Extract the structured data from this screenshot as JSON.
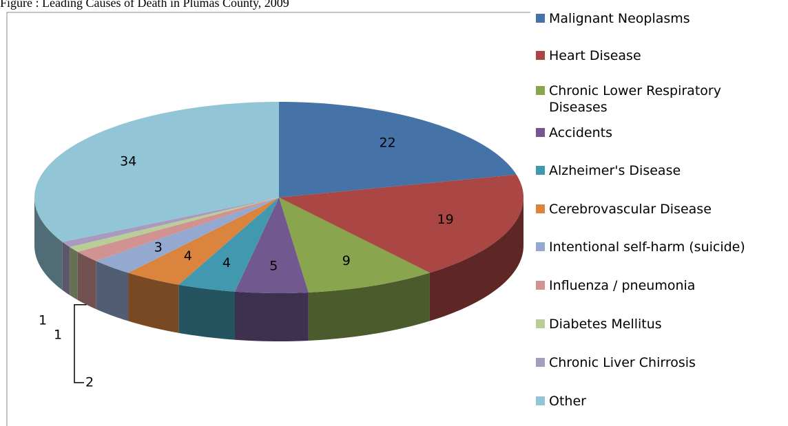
{
  "chart_data": {
    "type": "pie3d",
    "title": "Figure : Leading Causes of Death in Plumas County, 2009",
    "categories": [
      "Malignant Neoplasms",
      "Heart Disease",
      "Chronic Lower Respiratory Diseases",
      "Accidents",
      "Alzheimer's Disease",
      "Cerebrovascular Disease",
      "Intentional self-harm (suicide)",
      "Influenza / pneumonia",
      "Diabetes Mellitus",
      "Chronic Liver Chirrosis",
      "Other"
    ],
    "values": [
      22,
      19,
      9,
      5,
      4,
      4,
      3,
      2,
      1,
      1,
      34
    ],
    "colors": [
      "#4572a7",
      "#aa4643",
      "#89a54e",
      "#71588f",
      "#4198af",
      "#db843d",
      "#93a9cf",
      "#d19392",
      "#b9cd96",
      "#a99bbd",
      "#92c5d6"
    ],
    "legend": "right"
  }
}
